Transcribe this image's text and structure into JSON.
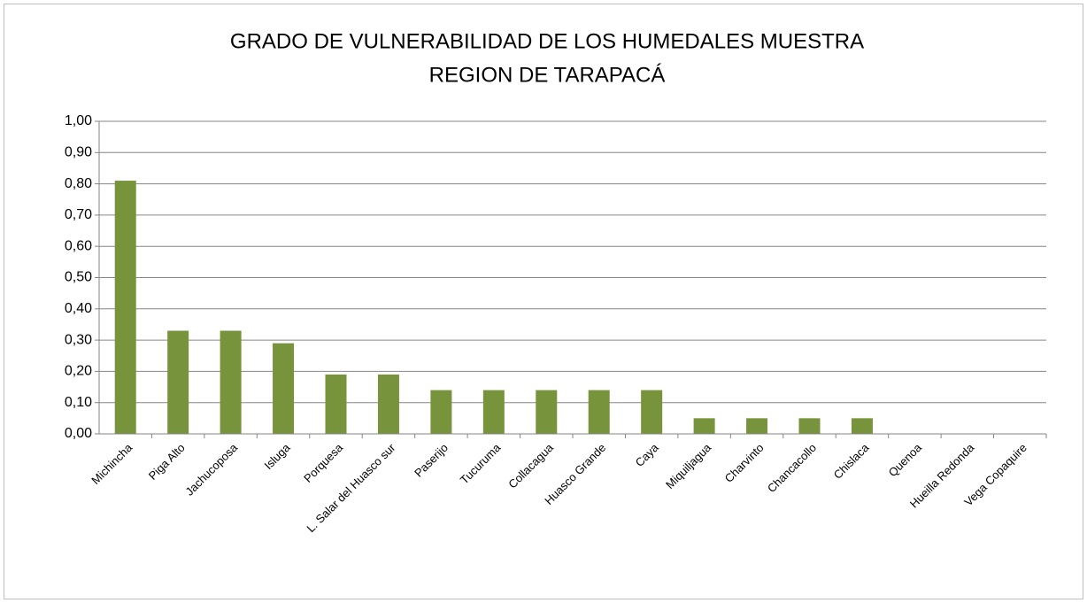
{
  "chart_data": {
    "type": "bar",
    "title": [
      "GRADO DE VULNERABILIDAD DE LOS HUMEDALES MUESTRA",
      "REGION DE TARAPACÁ"
    ],
    "categories": [
      "Michincha",
      "Piga Alto",
      "Jachucoposa",
      "Isluga",
      "Porquesa",
      "L. Salar del Huasco sur",
      "Paserijo",
      "Tucuruma",
      "Collacagua",
      "Huasco Grande",
      "Caya",
      "Miquiljagua",
      "Charvinto",
      "Chancacollo",
      "Chislaca",
      "Quenoa",
      "Hueilla Redonda",
      "Vega Copaquire"
    ],
    "values": [
      0.81,
      0.33,
      0.33,
      0.29,
      0.19,
      0.19,
      0.14,
      0.14,
      0.14,
      0.14,
      0.14,
      0.05,
      0.05,
      0.05,
      0.05,
      0,
      0,
      0
    ],
    "color": "#77933c",
    "ylim": [
      0,
      1
    ],
    "yticks": [
      {
        "value": 0,
        "label": "0,00"
      },
      {
        "value": 0.1,
        "label": "0,10"
      },
      {
        "value": 0.2,
        "label": "0,20"
      },
      {
        "value": 0.3,
        "label": "0,30"
      },
      {
        "value": 0.4,
        "label": "0,40"
      },
      {
        "value": 0.5,
        "label": "0,50"
      },
      {
        "value": 0.6,
        "label": "0,60"
      },
      {
        "value": 0.7,
        "label": "0,70"
      },
      {
        "value": 0.8,
        "label": "0,80"
      },
      {
        "value": 0.9,
        "label": "0,90"
      },
      {
        "value": 1,
        "label": "1,00"
      }
    ],
    "grid": true
  }
}
